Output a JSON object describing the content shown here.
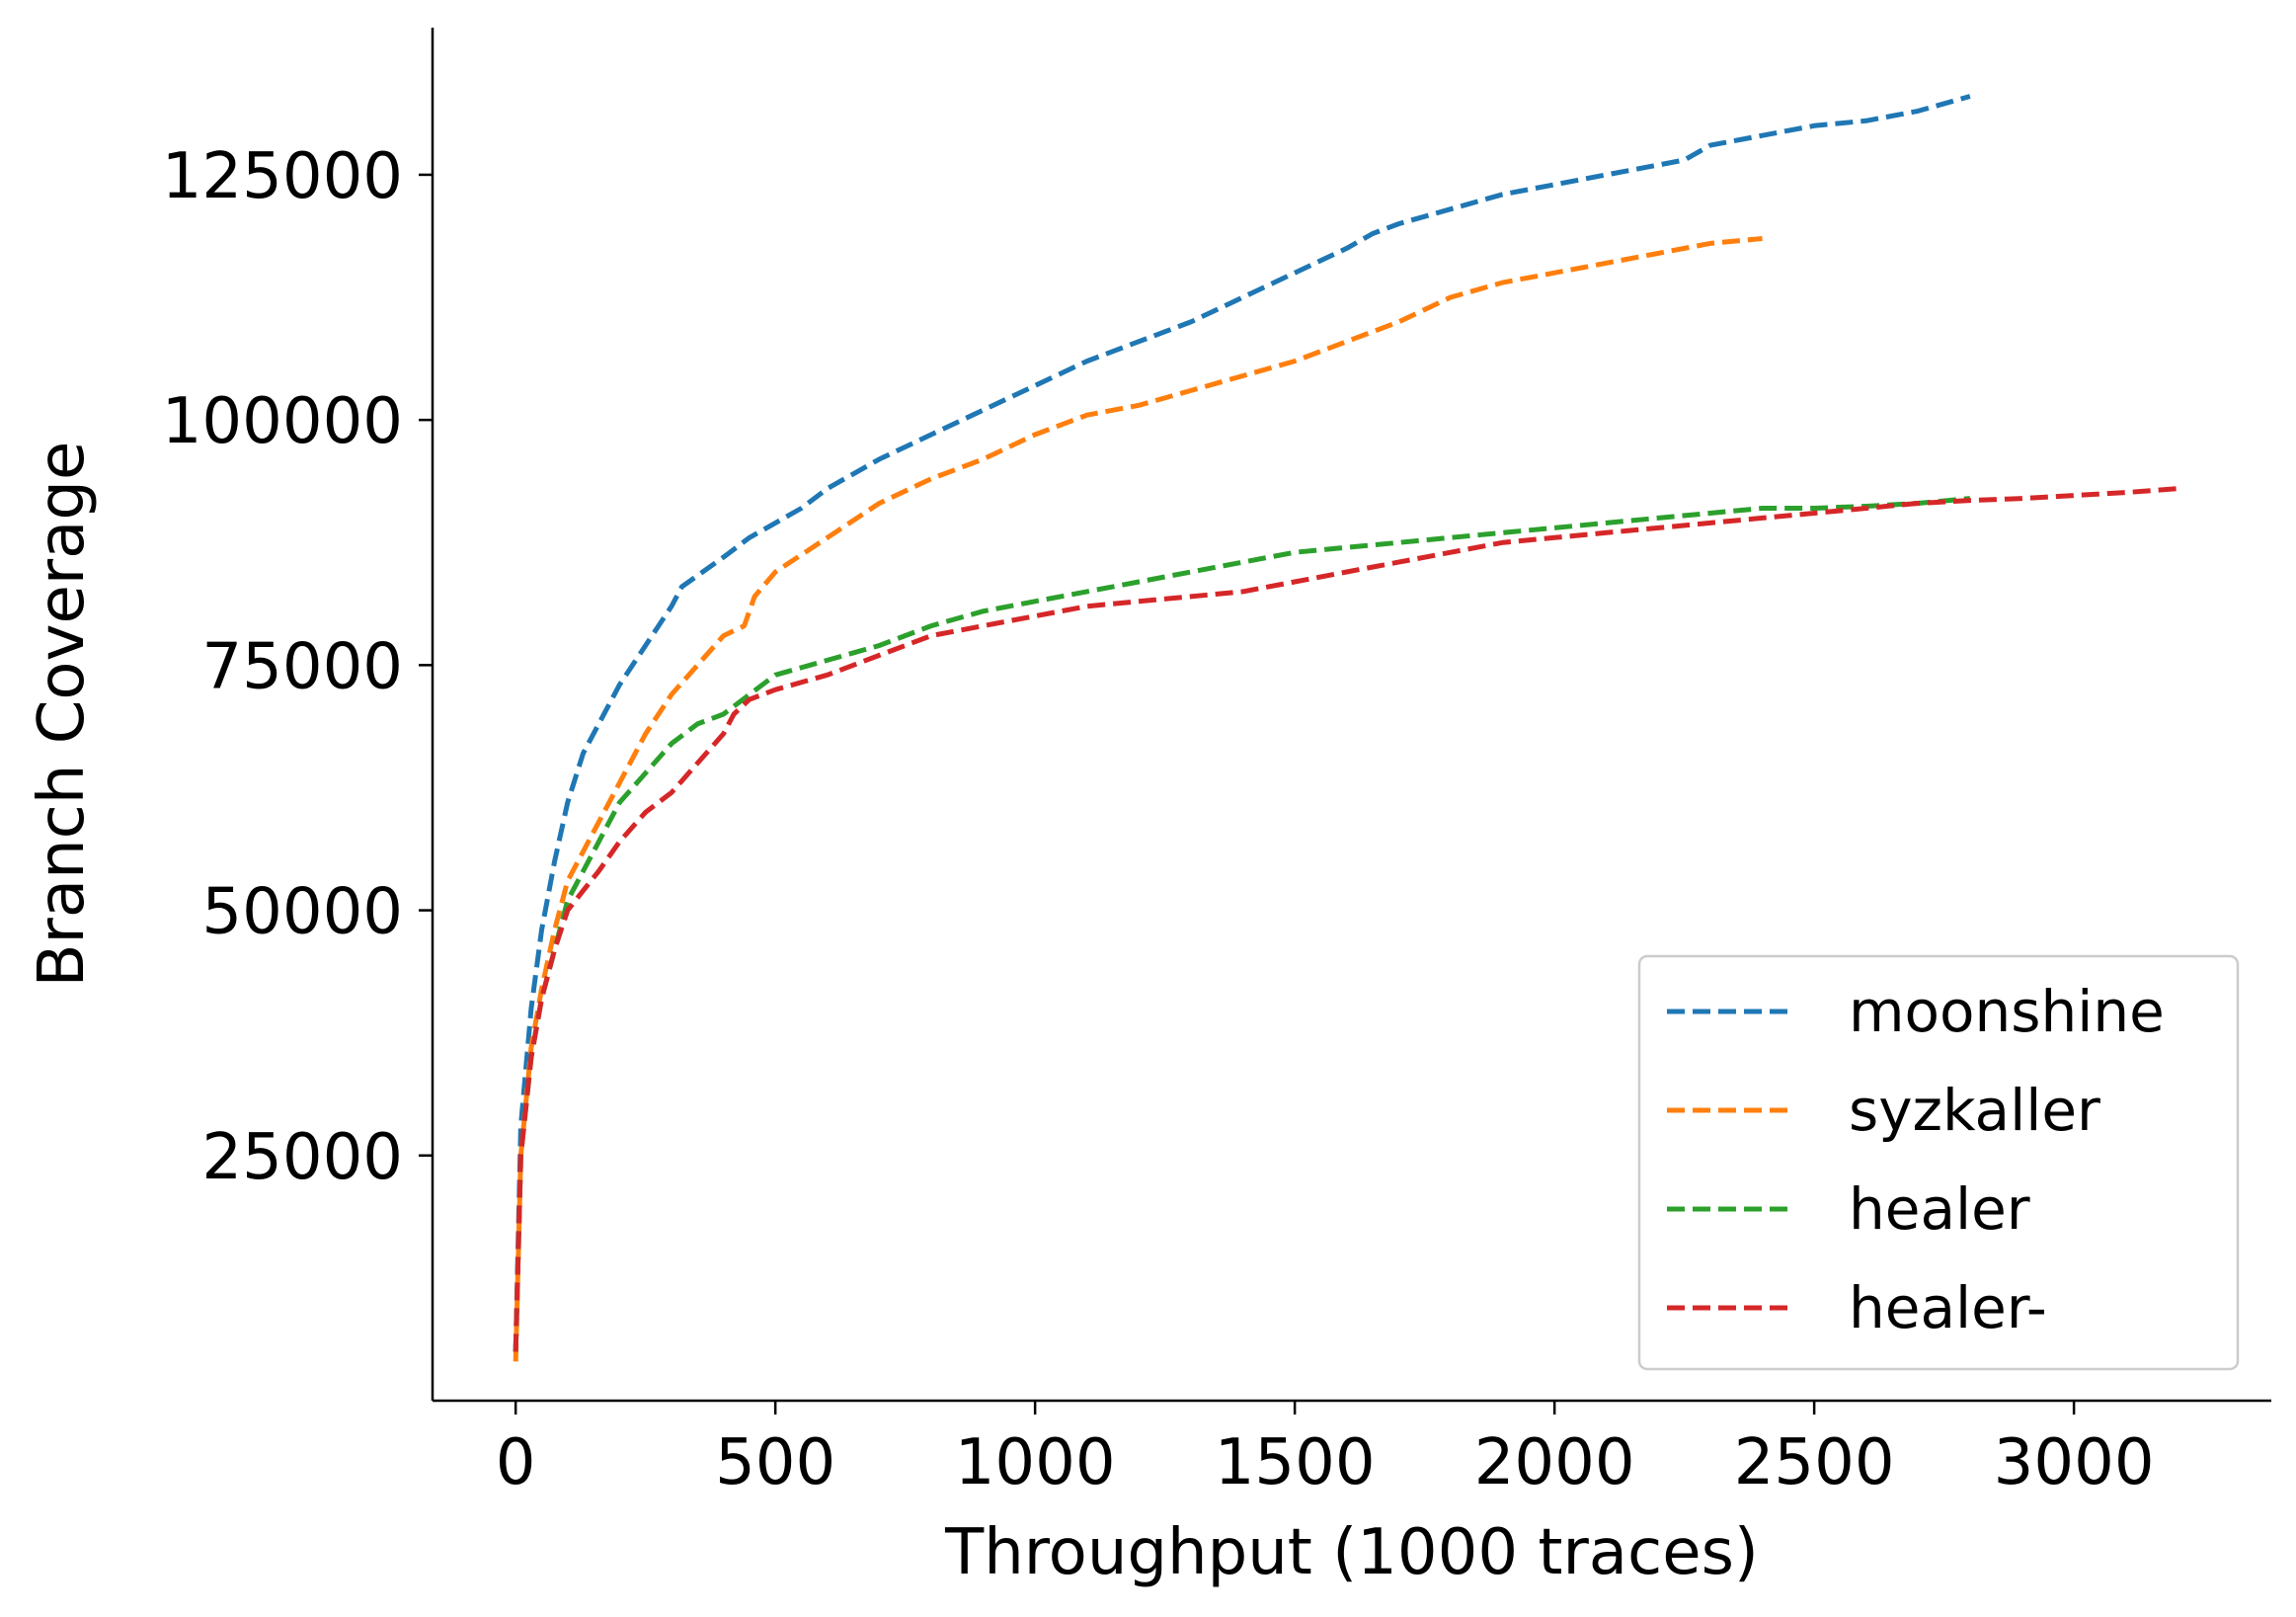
{
  "chart_data": {
    "type": "line",
    "xlabel": "Throughput (1000 traces)",
    "ylabel": "Branch Coverage",
    "xlim": [
      -160,
      3380
    ],
    "ylim": [
      0,
      140000
    ],
    "xticks": [
      0,
      500,
      1000,
      1500,
      2000,
      2500,
      3000
    ],
    "xtick_labels": [
      "0",
      "500",
      "1000",
      "1500",
      "2000",
      "2500",
      "3000"
    ],
    "yticks": [
      25000,
      50000,
      75000,
      100000,
      125000
    ],
    "ytick_labels": [
      "25000",
      "50000",
      "75000",
      "100000",
      "125000"
    ],
    "grid": false,
    "legend_position": "lower-right",
    "series": [
      {
        "name": "moonshine",
        "color": "#1f77b4",
        "x": [
          0,
          10,
          30,
          50,
          75,
          100,
          130,
          160,
          200,
          250,
          300,
          320,
          400,
          450,
          500,
          550,
          600,
          700,
          800,
          900,
          1000,
          1100,
          1200,
          1300,
          1400,
          1500,
          1600,
          1650,
          1700,
          1800,
          1900,
          2000,
          2100,
          2200,
          2250,
          2300,
          2400,
          2500,
          2600,
          2700,
          2800
        ],
        "y": [
          5000,
          28000,
          40000,
          48000,
          55000,
          61000,
          66000,
          69000,
          73000,
          77000,
          81000,
          83000,
          86000,
          88000,
          89500,
          91000,
          93000,
          96000,
          98500,
          101000,
          103500,
          106000,
          108000,
          110000,
          112500,
          115000,
          117500,
          119000,
          120000,
          121500,
          123000,
          124000,
          125000,
          126000,
          126500,
          128000,
          129000,
          130000,
          130500,
          131500,
          133000
        ]
      },
      {
        "name": "syzkaller",
        "color": "#ff7f0e",
        "x": [
          0,
          10,
          30,
          50,
          75,
          100,
          150,
          200,
          250,
          300,
          350,
          400,
          440,
          460,
          500,
          600,
          700,
          800,
          900,
          1000,
          1100,
          1200,
          1300,
          1400,
          1500,
          1600,
          1700,
          1800,
          1900,
          2000,
          2100,
          2200,
          2300,
          2400
        ],
        "y": [
          4000,
          25000,
          36000,
          42000,
          48000,
          53000,
          58000,
          63000,
          68000,
          72000,
          75000,
          78000,
          79000,
          82000,
          84500,
          88000,
          91500,
          94000,
          96000,
          98500,
          100500,
          101500,
          103000,
          104500,
          106000,
          108000,
          110000,
          112500,
          114000,
          115000,
          116000,
          117000,
          118000,
          118500
        ]
      },
      {
        "name": "healer",
        "color": "#2ca02c",
        "x": [
          0,
          10,
          30,
          50,
          75,
          100,
          150,
          200,
          250,
          300,
          350,
          400,
          450,
          500,
          600,
          700,
          800,
          900,
          1000,
          1100,
          1200,
          1300,
          1400,
          1500,
          1600,
          1700,
          1800,
          1900,
          2000,
          2100,
          2200,
          2300,
          2400,
          2500,
          2600,
          2700,
          2800
        ],
        "y": [
          5000,
          25000,
          35000,
          41000,
          46000,
          51000,
          56000,
          61000,
          64000,
          67000,
          69000,
          70000,
          72000,
          74000,
          75500,
          77000,
          79000,
          80500,
          81500,
          82500,
          83500,
          84500,
          85500,
          86500,
          87000,
          87500,
          88000,
          88500,
          89000,
          89500,
          90000,
          90500,
          91000,
          91000,
          91200,
          91500,
          92000
        ]
      },
      {
        "name": "healer-",
        "color": "#d62728",
        "x": [
          0,
          10,
          30,
          50,
          75,
          100,
          130,
          160,
          200,
          250,
          300,
          350,
          400,
          420,
          450,
          500,
          600,
          700,
          800,
          900,
          1000,
          1100,
          1200,
          1300,
          1400,
          1500,
          1600,
          1700,
          1800,
          1900,
          2000,
          2100,
          2200,
          2300,
          2400,
          2500,
          2600,
          2700,
          2800,
          2900,
          3000,
          3100,
          3200
        ],
        "y": [
          5000,
          25000,
          35000,
          41000,
          46000,
          50000,
          52000,
          54000,
          57000,
          60000,
          62000,
          65000,
          68000,
          70000,
          71500,
          72500,
          74000,
          76000,
          78000,
          79000,
          80000,
          81000,
          81500,
          82000,
          82500,
          83500,
          84500,
          85500,
          86500,
          87500,
          88000,
          88500,
          89000,
          89500,
          90000,
          90500,
          91000,
          91500,
          91800,
          92000,
          92300,
          92600,
          93000
        ]
      }
    ]
  }
}
